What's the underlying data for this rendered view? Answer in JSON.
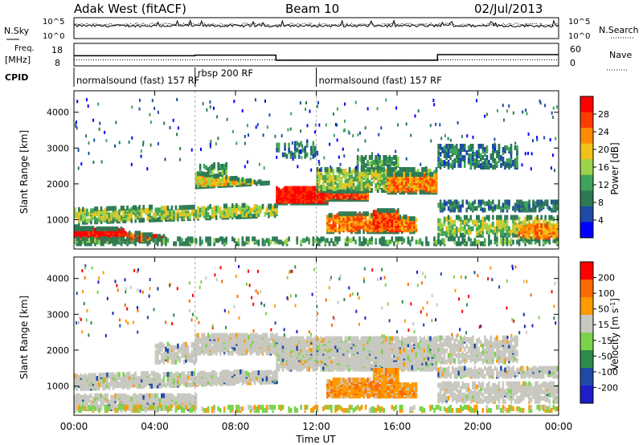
{
  "header": {
    "site": "Adak West (fitACF)",
    "beam": "Beam 10",
    "date": "02/Jul/2013"
  },
  "chart_data": [
    {
      "type": "line",
      "panel": "noise",
      "left_label": "N.Sky",
      "left_ticks": [
        "10^5",
        "10^0"
      ],
      "right_label": "N.Search",
      "right_ticks": [
        "10^5",
        "10^0"
      ],
      "series": [
        {
          "name": "N.Sky",
          "style": "solid",
          "level": 0.6
        },
        {
          "name": "N.Search",
          "style": "dotted",
          "level": 0.65
        }
      ]
    },
    {
      "type": "line",
      "panel": "frequency",
      "left_label_top": "Freq.",
      "left_label_unit": "[MHz]",
      "left_ticks": [
        "18",
        "8"
      ],
      "right_label": "Nave",
      "right_ticks": [
        "60",
        "0"
      ],
      "freq_steps": [
        {
          "from": 0,
          "to": 6,
          "value": 12.5
        },
        {
          "from": 6,
          "to": 10,
          "value": 12.8
        },
        {
          "from": 10,
          "to": 18,
          "value": 10.5
        },
        {
          "from": 18,
          "to": 24,
          "value": 13.0
        }
      ],
      "nave_steps": [
        {
          "from": 0,
          "to": 10,
          "value": 16
        },
        {
          "from": 10,
          "to": 24,
          "value": 16
        }
      ]
    },
    {
      "type": "table",
      "panel": "cpid",
      "label": "CPID",
      "segments": [
        {
          "start": 0,
          "text": "normalsound (fast) 157 RF"
        },
        {
          "start": 6,
          "text": "rbsp 200 RF"
        },
        {
          "start": 12,
          "text": "normalsound (fast) 157 RF"
        }
      ]
    },
    {
      "type": "heatmap",
      "panel": "power",
      "ylabel": "Slant Range [km]",
      "yticks": [
        "1000",
        "2000",
        "3000",
        "4000"
      ],
      "ylim": [
        180,
        4600
      ],
      "colorbar_label": "Power [dB]",
      "colorbar_ticks": [
        "28",
        "24",
        "20",
        "16",
        "12",
        "8",
        "4"
      ],
      "colors": [
        "#0000ff",
        "#1e4aa8",
        "#2c7a55",
        "#3fa35a",
        "#9bd34a",
        "#f2c21a",
        "#ff8a00",
        "#ff3c00",
        "#ff0000"
      ]
    },
    {
      "type": "heatmap",
      "panel": "velocity",
      "ylabel": "Slant Range [km]",
      "yticks": [
        "1000",
        "2000",
        "3000",
        "4000"
      ],
      "ylim": [
        180,
        4600
      ],
      "colorbar_label": "Velocity [m s^-1]",
      "colorbar_ticks": [
        "200",
        "100",
        "50",
        "15",
        "-15",
        "-50",
        "-100",
        "-200"
      ],
      "colors": [
        "#1e1ec8",
        "#1e4aa8",
        "#2e8a4a",
        "#7ad34a",
        "#c8c8c0",
        "#ff9a00",
        "#ff6a00",
        "#ff0000"
      ]
    }
  ],
  "xaxis": {
    "label": "Time UT",
    "ticks": [
      "00:00",
      "04:00",
      "08:00",
      "12:00",
      "16:00",
      "20:00",
      "00:00"
    ]
  }
}
